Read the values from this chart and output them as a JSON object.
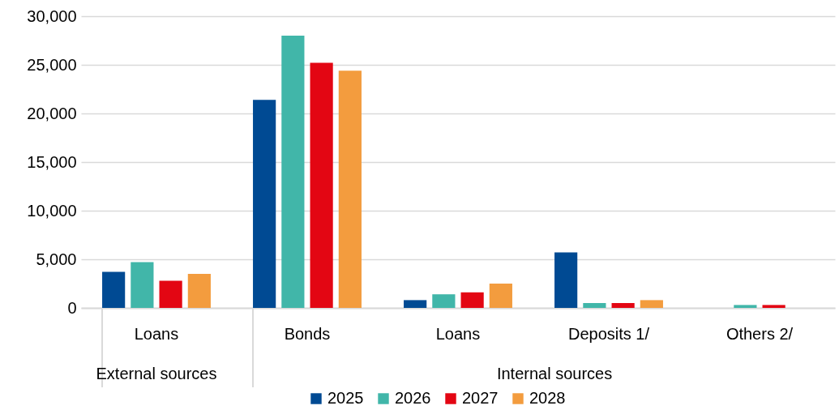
{
  "chart_data": {
    "type": "bar",
    "categories": [
      "Loans",
      "Bonds",
      "Loans",
      "Deposits 1/",
      "Others 2/"
    ],
    "series": [
      {
        "name": "2025",
        "color": "#004a93",
        "values": [
          3700,
          21400,
          800,
          5700,
          0
        ]
      },
      {
        "name": "2026",
        "color": "#41b6a9",
        "values": [
          4700,
          28000,
          1400,
          500,
          300
        ]
      },
      {
        "name": "2027",
        "color": "#e30613",
        "values": [
          2800,
          25200,
          1600,
          500,
          300
        ]
      },
      {
        "name": "2028",
        "color": "#f39c3e",
        "values": [
          3500,
          24400,
          2500,
          800,
          0
        ]
      }
    ],
    "annotations": [
      "External sources",
      "Internal sources"
    ],
    "ylim": [
      0,
      30000
    ],
    "yticks": [
      0,
      {
        "value": 5000,
        "label": "5,000"
      },
      {
        "value": 10000,
        "label": "10,000"
      },
      {
        "value": 15000,
        "label": "15,000"
      },
      {
        "value": 20000,
        "label": "20,000"
      },
      {
        "value": 25000,
        "label": "25,000"
      },
      {
        "value": 30000,
        "label": "30,000"
      }
    ],
    "grid": "y",
    "legend": "bottom"
  }
}
